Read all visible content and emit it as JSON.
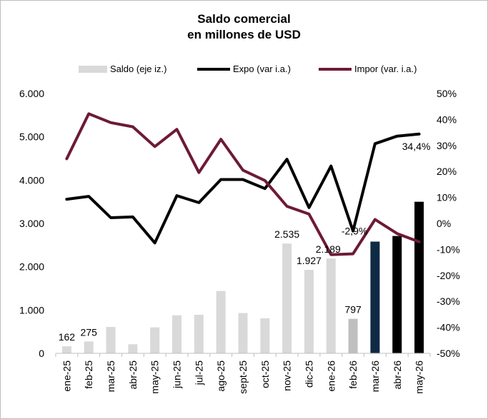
{
  "chart_data": {
    "type": "bar+line",
    "title_line1": "Saldo comercial",
    "title_line2": "en millones de USD",
    "categories": [
      "ene-25",
      "feb-25",
      "mar-25",
      "abr-25",
      "may-25",
      "jun-25",
      "jul-25",
      "ago-25",
      "sept-25",
      "oct-25",
      "nov-25",
      "dic-25",
      "ene-26",
      "feb-26",
      "mar-26",
      "abr-26",
      "may-26"
    ],
    "legend": {
      "saldo": "Saldo (eje iz.)",
      "expo": "Expo (var i.a.)",
      "impor": "Impor (var. i.a.)"
    },
    "left_axis": {
      "ylim": [
        0,
        6000
      ],
      "ticks": [
        "0",
        "1.000",
        "2.000",
        "3.000",
        "4.000",
        "5.000",
        "6.000"
      ],
      "tick_values": [
        0,
        1000,
        2000,
        3000,
        4000,
        5000,
        6000
      ]
    },
    "right_axis": {
      "ylim": [
        -50,
        50
      ],
      "ticks": [
        "-50%",
        "-40%",
        "-30%",
        "-20%",
        "-10%",
        "0%",
        "10%",
        "20%",
        "30%",
        "40%",
        "50%"
      ],
      "tick_values": [
        -50,
        -40,
        -30,
        -20,
        -10,
        0,
        10,
        20,
        30,
        40,
        50
      ]
    },
    "series": [
      {
        "name": "Saldo (eje iz.)",
        "kind": "bar",
        "axis": "left",
        "values": [
          162,
          275,
          610,
          210,
          600,
          880,
          890,
          1440,
          930,
          810,
          2535,
          1927,
          2189,
          797,
          2580,
          2710,
          3500
        ],
        "colors": [
          "#d9d9d9",
          "#d9d9d9",
          "#d9d9d9",
          "#d9d9d9",
          "#d9d9d9",
          "#d9d9d9",
          "#d9d9d9",
          "#d9d9d9",
          "#d9d9d9",
          "#d9d9d9",
          "#d9d9d9",
          "#d9d9d9",
          "#d9d9d9",
          "#bfbfbf",
          "#0f2a44",
          "#000000",
          "#000000"
        ]
      },
      {
        "name": "Expo (var i.a.)",
        "kind": "line",
        "axis": "right",
        "color": "#000000",
        "values": [
          9.3,
          10.4,
          2.2,
          2.5,
          -7.5,
          10.7,
          8.0,
          16.9,
          16.9,
          13.4,
          24.7,
          6.1,
          22.1,
          -2.9,
          30.7,
          33.6,
          34.4
        ]
      },
      {
        "name": "Impor (var. i.a.)",
        "kind": "line",
        "axis": "right",
        "color": "#6d1a36",
        "values": [
          24.9,
          42.2,
          38.8,
          37.2,
          29.6,
          36.2,
          19.6,
          32.4,
          20.5,
          16.5,
          6.6,
          3.6,
          -12.0,
          -11.7,
          1.5,
          -3.9,
          -7.1
        ]
      }
    ],
    "data_labels": [
      {
        "series": "Saldo (eje iz.)",
        "category": "ene-25",
        "text": "162"
      },
      {
        "series": "Saldo (eje iz.)",
        "category": "feb-25",
        "text": "275"
      },
      {
        "series": "Saldo (eje iz.)",
        "category": "nov-25",
        "text": "2.535"
      },
      {
        "series": "Saldo (eje iz.)",
        "category": "dic-25",
        "text": "1.927"
      },
      {
        "series": "Saldo (eje iz.)",
        "category": "ene-26",
        "text": "2.189"
      },
      {
        "series": "Saldo (eje iz.)",
        "category": "feb-26",
        "text": "797"
      },
      {
        "series": "Expo (var i.a.)",
        "category": "feb-26",
        "text": "-2,9%"
      },
      {
        "series": "Expo (var i.a.)",
        "category": "may-26",
        "text": "34,4%"
      }
    ],
    "grid": false,
    "legend_position": "top"
  }
}
